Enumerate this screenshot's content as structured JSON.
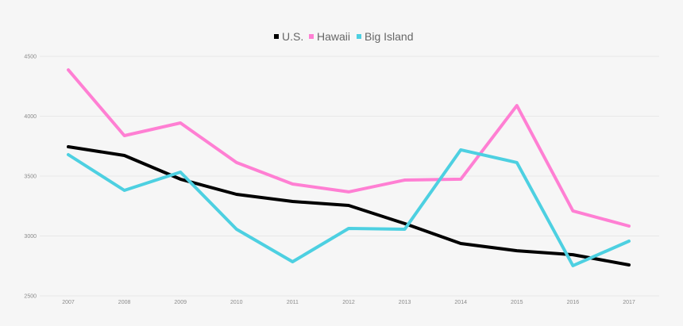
{
  "chart_data": {
    "type": "line",
    "title": "",
    "xlabel": "",
    "ylabel": "",
    "x": [
      "2007",
      "2008",
      "2009",
      "2010",
      "2011",
      "2012",
      "2013",
      "2014",
      "2015",
      "2016",
      "2017"
    ],
    "ylim": [
      2500,
      4500
    ],
    "yticks": [
      "2500",
      "3000",
      "3500",
      "4000",
      "4500"
    ],
    "grid": true,
    "legend_position": "top-center",
    "series": [
      {
        "name": "U.S.",
        "color": "#000000",
        "values": [
          3745,
          3672,
          3474,
          3348,
          3288,
          3255,
          3103,
          2937,
          2877,
          2844,
          2758
        ]
      },
      {
        "name": "Hawaii",
        "color": "#ff7fd3",
        "values": [
          4387,
          3838,
          3944,
          3613,
          3434,
          3368,
          3467,
          3474,
          4089,
          3209,
          3083
        ]
      },
      {
        "name": "Big Island",
        "color": "#4dd0e1",
        "values": [
          3679,
          3381,
          3533,
          3056,
          2785,
          3063,
          3056,
          3719,
          3613,
          2752,
          2957
        ]
      }
    ]
  }
}
